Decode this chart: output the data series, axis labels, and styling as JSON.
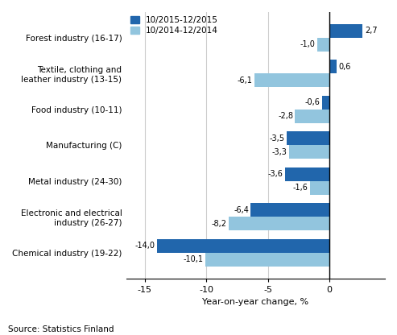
{
  "categories": [
    "Chemical industry (19-22)",
    "Electronic and electrical\nindustry (26-27)",
    "Metal industry (24-30)",
    "Manufacturing (C)",
    "Food industry (10-11)",
    "Textile, clothing and\nleather industry (13-15)",
    "Forest industry (16-17)"
  ],
  "series_2015": [
    -14.0,
    -6.4,
    -3.6,
    -3.5,
    -0.6,
    0.6,
    2.7
  ],
  "series_2014": [
    -10.1,
    -8.2,
    -1.6,
    -3.3,
    -2.8,
    -6.1,
    -1.0
  ],
  "color_2015": "#2166ac",
  "color_2014": "#92c5de",
  "legend_2015": "10/2015-12/2015",
  "legend_2014": "10/2014-12/2014",
  "xlabel": "Year-on-year change, %",
  "xlim": [
    -16.5,
    4.5
  ],
  "xticks": [
    -15,
    -10,
    -5,
    0
  ],
  "source": "Source: Statistics Finland",
  "grid_color": "#cccccc",
  "bar_height": 0.38
}
